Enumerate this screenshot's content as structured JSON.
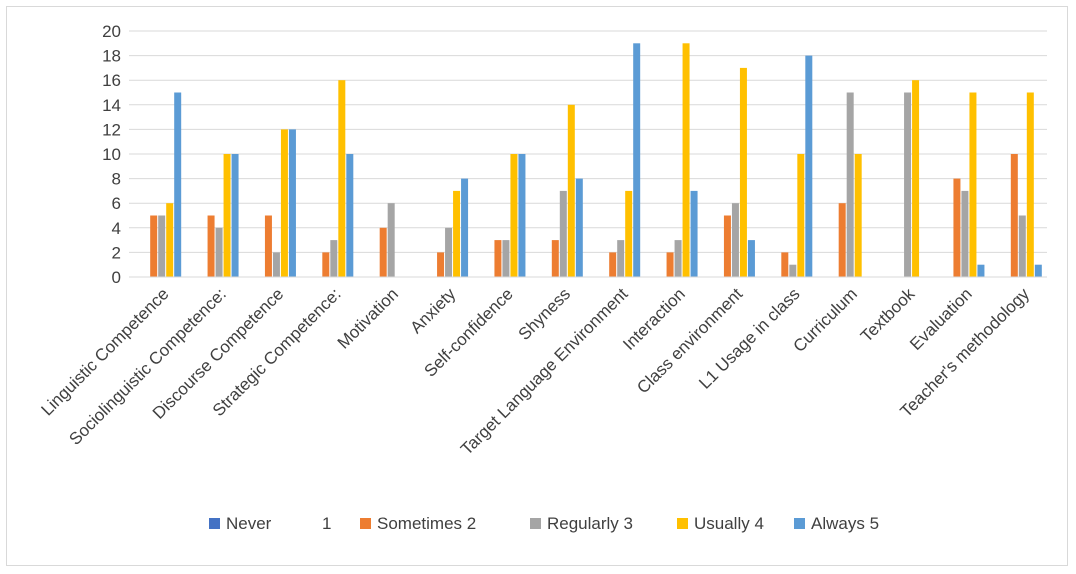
{
  "chart_data": {
    "type": "bar",
    "categories": [
      "Linguistic Competence",
      "Sociolinguistic Competence:",
      "Discourse Competence",
      "Strategic Competence:",
      "Motivation",
      "Anxiety",
      "Self-confidence",
      "Shyness",
      "Target Language Environment",
      "Interaction",
      "Class environment",
      "L1 Usage in class",
      "Curriculum",
      "Textbook",
      "Evaluation",
      "Teacher's methodology"
    ],
    "series": [
      {
        "name": "Never",
        "extra": "1",
        "color": "#4472c4",
        "values": [
          0,
          0,
          0,
          0,
          0,
          0,
          0,
          0,
          0,
          0,
          0,
          0,
          0,
          0,
          0,
          0
        ]
      },
      {
        "name": "Sometimes 2",
        "color": "#ed7d31",
        "values": [
          5,
          5,
          5,
          2,
          4,
          2,
          3,
          3,
          2,
          2,
          5,
          2,
          6,
          0,
          8,
          10
        ]
      },
      {
        "name": "Regularly 3",
        "color": "#a5a5a5",
        "values": [
          5,
          4,
          2,
          3,
          6,
          4,
          3,
          7,
          3,
          3,
          6,
          1,
          15,
          15,
          7,
          5
        ]
      },
      {
        "name": "Usually 4",
        "color": "#ffc000",
        "values": [
          6,
          10,
          12,
          16,
          0,
          7,
          10,
          14,
          7,
          19,
          17,
          10,
          10,
          16,
          15,
          15
        ]
      },
      {
        "name": "Always 5",
        "color": "#5b9bd5",
        "values": [
          15,
          10,
          12,
          10,
          0,
          8,
          10,
          8,
          19,
          7,
          3,
          18,
          0,
          0,
          1,
          1
        ]
      }
    ],
    "y_ticks": [
      "0",
      "2",
      "4",
      "6",
      "8",
      "10",
      "12",
      "14",
      "16",
      "18",
      "20"
    ],
    "ylim": [
      0,
      20
    ],
    "grid": true,
    "legend": "bottom"
  }
}
